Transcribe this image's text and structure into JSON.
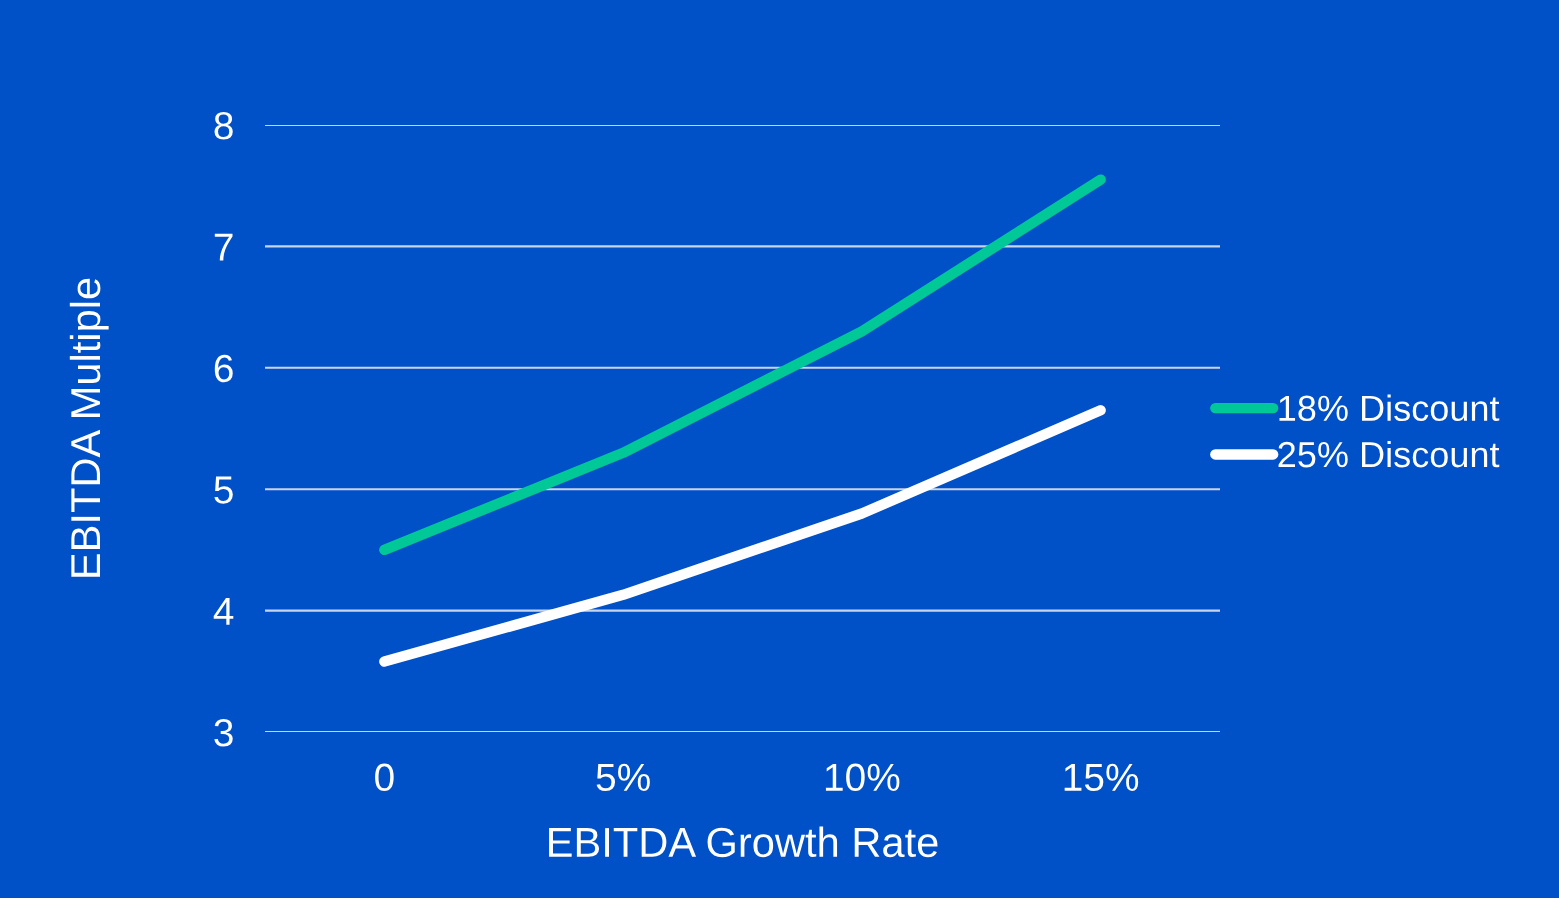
{
  "chart_data": {
    "type": "line",
    "xlabel": "EBITDA Growth Rate",
    "ylabel": "EBITDA Multiple",
    "categories": [
      "0",
      "5%",
      "10%",
      "15%"
    ],
    "series": [
      {
        "name": "18% Discount",
        "color": "#00c896",
        "values": [
          4.5,
          5.3,
          6.3,
          7.55
        ]
      },
      {
        "name": "25% Discount",
        "color": "#ffffff",
        "values": [
          3.58,
          4.13,
          4.8,
          5.65
        ]
      }
    ],
    "ylim": [
      3,
      8
    ],
    "yticks": [
      3,
      4,
      5,
      6,
      7,
      8
    ],
    "grid": "y",
    "legend": "right",
    "marker": "none",
    "line_style": "solid"
  }
}
